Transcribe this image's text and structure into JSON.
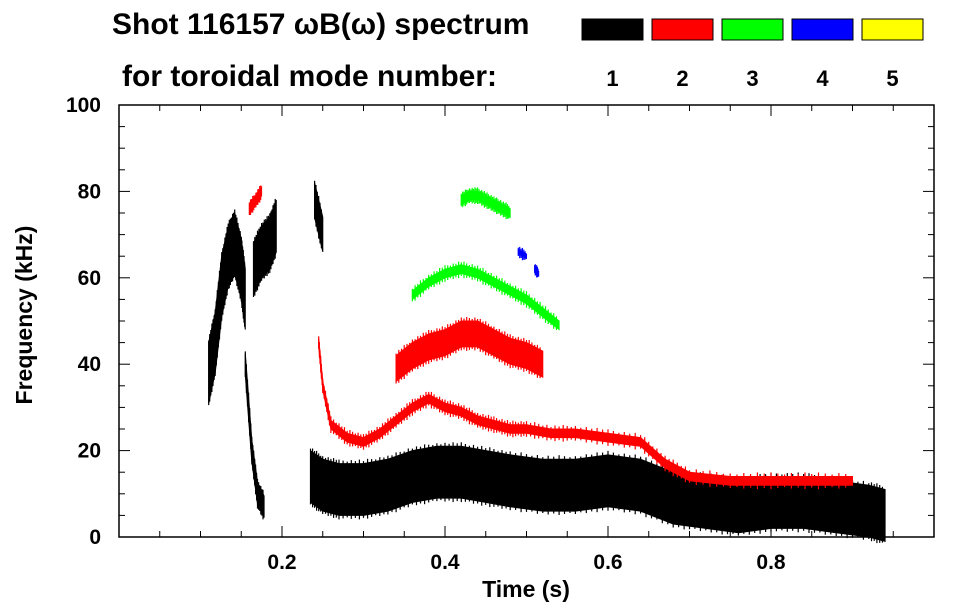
{
  "chart_data": {
    "type": "scatter",
    "title_line1": "Shot 116157 ωB(ω) spectrum",
    "title_line2": "for toroidal mode number:",
    "xlabel": "Time (s)",
    "ylabel": "Frequency (kHz)",
    "xlim": [
      0.0,
      1.0
    ],
    "ylim": [
      0,
      100
    ],
    "xticks": [
      {
        "value": 0.2,
        "label": "0.2"
      },
      {
        "value": 0.4,
        "label": "0.4"
      },
      {
        "value": 0.6,
        "label": "0.6"
      },
      {
        "value": 0.8,
        "label": "0.8"
      }
    ],
    "yticks": [
      {
        "value": 0,
        "label": "0"
      },
      {
        "value": 20,
        "label": "20"
      },
      {
        "value": 40,
        "label": "40"
      },
      {
        "value": 60,
        "label": "60"
      },
      {
        "value": 80,
        "label": "80"
      },
      {
        "value": 100,
        "label": "100"
      }
    ],
    "legend": [
      {
        "n": "1",
        "color": "#000000"
      },
      {
        "n": "2",
        "color": "#ff0000"
      },
      {
        "n": "3",
        "color": "#00ff00"
      },
      {
        "n": "4",
        "color": "#0000ff"
      },
      {
        "n": "5",
        "color": "#ffff00"
      }
    ],
    "series": [
      {
        "name": "n=1",
        "color": "#000000",
        "bands": [
          {
            "t": [
              0.11,
              0.118,
              0.126,
              0.134,
              0.142,
              0.15,
              0.155
            ],
            "f": [
              38,
              45,
              58,
              65,
              68,
              62,
              55
            ],
            "width": 14
          },
          {
            "t": [
              0.155,
              0.163,
              0.17,
              0.178
            ],
            "f": [
              40,
              20,
              10,
              7
            ],
            "width": 5
          },
          {
            "t": [
              0.165,
              0.175,
              0.185,
              0.193
            ],
            "f": [
              62,
              66,
              68,
              72
            ],
            "width": 12
          },
          {
            "t": [
              0.235,
              0.25,
              0.27,
              0.3,
              0.33,
              0.36,
              0.39,
              0.42,
              0.45,
              0.48,
              0.52,
              0.56,
              0.6,
              0.64,
              0.68,
              0.72,
              0.76,
              0.8,
              0.84,
              0.88,
              0.92,
              0.94
            ],
            "f": [
              14,
              12,
              11,
              11,
              12,
              14,
              15,
              15,
              14,
              13,
              12,
              12,
              13,
              12,
              9,
              8,
              7,
              8,
              8,
              7,
              6,
              5
            ],
            "width": 12
          },
          {
            "t": [
              0.24,
              0.25
            ],
            "f": [
              78,
              70
            ],
            "width": 8
          }
        ]
      },
      {
        "name": "n=2",
        "color": "#ff0000",
        "bands": [
          {
            "t": [
              0.245,
              0.25,
              0.26,
              0.28,
              0.3,
              0.32,
              0.34,
              0.36,
              0.38,
              0.4,
              0.42,
              0.44,
              0.46,
              0.48,
              0.5,
              0.53,
              0.56,
              0.6,
              0.64,
              0.67,
              0.7,
              0.75,
              0.8,
              0.85,
              0.9
            ],
            "f": [
              45,
              35,
              26,
              23,
              22,
              24,
              27,
              30,
              32,
              30,
              29,
              27,
              26,
              25,
              25,
              24,
              24,
              23,
              22,
              17,
              14,
              13,
              13,
              13,
              13
            ],
            "width": 2
          },
          {
            "t": [
              0.34,
              0.36,
              0.38,
              0.4,
              0.42,
              0.44,
              0.46,
              0.48,
              0.5,
              0.52
            ],
            "f": [
              39,
              42,
              44,
              45,
              47,
              47,
              45,
              43,
              42,
              40
            ],
            "width": 6
          },
          {
            "t": [
              0.16,
              0.168,
              0.175
            ],
            "f": [
              76,
              78,
              80
            ],
            "width": 2
          }
        ]
      },
      {
        "name": "n=3",
        "color": "#00ff00",
        "bands": [
          {
            "t": [
              0.36,
              0.38,
              0.4,
              0.42,
              0.44,
              0.46,
              0.48,
              0.5,
              0.52,
              0.54
            ],
            "f": [
              56,
              59,
              61,
              62,
              61,
              59,
              57,
              55,
              52,
              49
            ],
            "width": 2
          },
          {
            "t": [
              0.42,
              0.43,
              0.44,
              0.45,
              0.46,
              0.47,
              0.48
            ],
            "f": [
              78,
              79,
              79,
              78,
              77,
              76,
              75
            ],
            "width": 2
          }
        ]
      },
      {
        "name": "n=4",
        "color": "#0000ff",
        "bands": [
          {
            "t": [
              0.49,
              0.5
            ],
            "f": [
              66,
              65
            ],
            "width": 1
          },
          {
            "t": [
              0.51,
              0.515
            ],
            "f": [
              62,
              61
            ],
            "width": 1
          }
        ]
      },
      {
        "name": "n=5",
        "color": "#ffff00",
        "bands": []
      }
    ]
  }
}
